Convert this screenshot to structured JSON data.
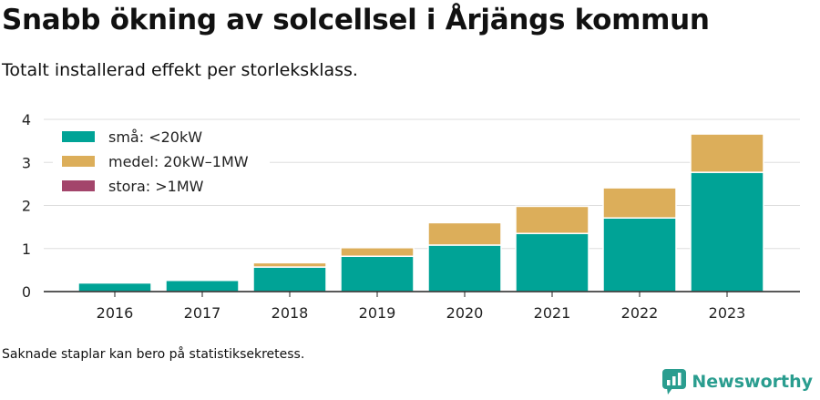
{
  "title": "Snabb ökning av solcellsel i Årjängs kommun",
  "subtitle": "Totalt installerad effekt per storleksklass.",
  "footnote": "Saknade staplar kan bero på statistiksekretess.",
  "brand": {
    "name": "Newsworthy",
    "icon": "newsworthy-logo-icon",
    "color": "#2a9d8f"
  },
  "chart_data": {
    "type": "bar",
    "stacked": true,
    "categories": [
      "2016",
      "2017",
      "2018",
      "2019",
      "2020",
      "2021",
      "2022",
      "2023"
    ],
    "series": [
      {
        "name": "små: <20kW",
        "color": "#00a396",
        "values": [
          0.2,
          0.26,
          0.57,
          0.82,
          1.08,
          1.35,
          1.71,
          2.77
        ]
      },
      {
        "name": "medel: 20kW–1MW",
        "color": "#dcae5a",
        "values": [
          0,
          0,
          0.1,
          0.2,
          0.52,
          0.63,
          0.7,
          0.89
        ]
      },
      {
        "name": "stora: >1MW",
        "color": "#a3456b",
        "values": [
          0,
          0,
          0,
          0,
          0,
          0,
          0,
          0
        ]
      }
    ],
    "ylim": [
      0,
      4
    ],
    "yticks": [
      0,
      1,
      2,
      3,
      4
    ],
    "xlabel": "",
    "ylabel": "",
    "grid": true,
    "legend": "top-left"
  }
}
